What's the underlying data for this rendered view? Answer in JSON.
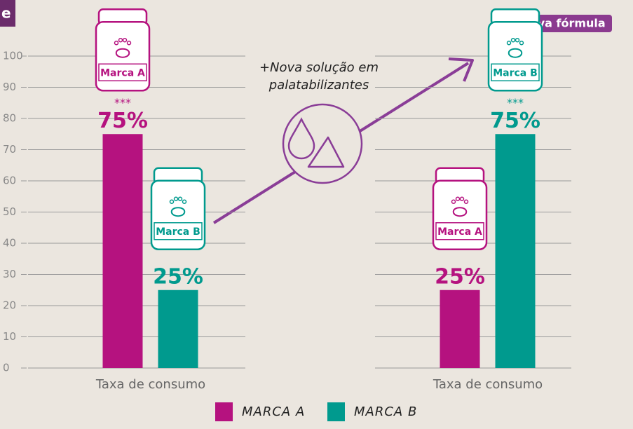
{
  "corner_text": "e",
  "annotation_lines": [
    "+Nova solução em",
    "palatabilizantes"
  ],
  "badge": "Nova fórmula",
  "chart_data": {
    "type": "bar",
    "categories": [
      "Taxa de consumo",
      "Taxa de consumo"
    ],
    "series": [
      {
        "name": "MARCA A",
        "package_label": "Marca A",
        "color": "#b5127f",
        "values": [
          75,
          25
        ],
        "value_labels": [
          "75%",
          "25%"
        ],
        "annotations": [
          "***",
          null
        ]
      },
      {
        "name": "MARCA B",
        "package_label": "Marca B",
        "color": "#009a8e",
        "values": [
          25,
          75
        ],
        "value_labels": [
          "25%",
          "75%"
        ],
        "annotations": [
          null,
          "***"
        ]
      }
    ],
    "ylim": [
      0,
      100
    ],
    "yticks": [
      0,
      10,
      20,
      30,
      40,
      50,
      60,
      70,
      80,
      90,
      100
    ],
    "grid": true
  }
}
